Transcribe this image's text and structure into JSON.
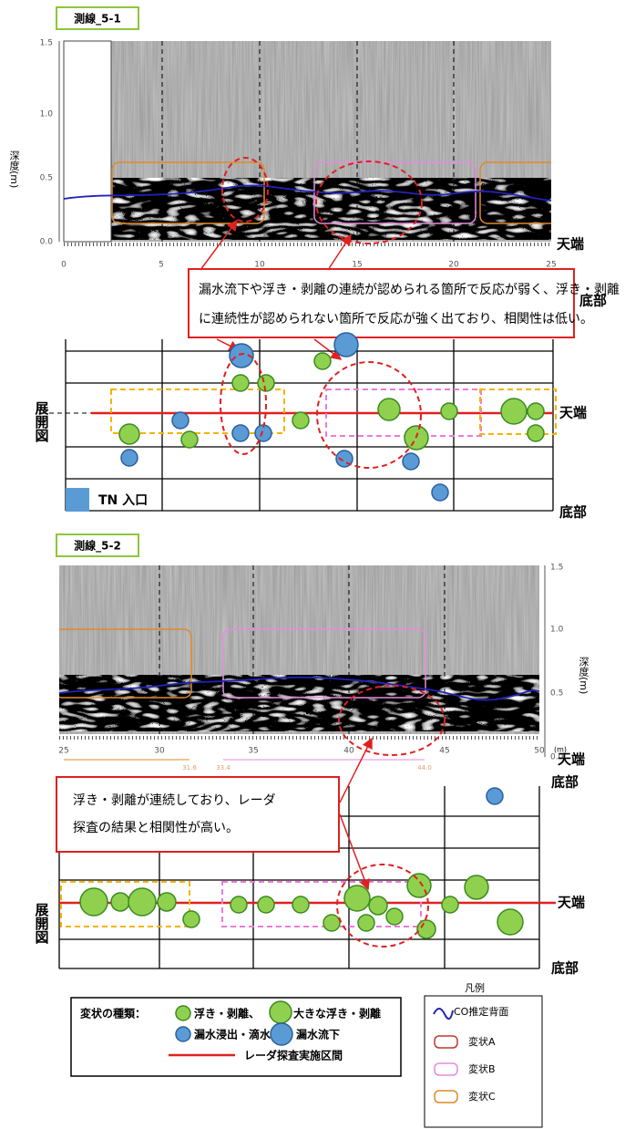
{
  "panel1": {
    "label": "測線_5-1",
    "depth_axis_label": "深度(m)",
    "depth_ticks": [
      "1.5",
      "1.0",
      "0.5",
      "0.0"
    ],
    "distance_ticks": [
      "0",
      "5",
      "10",
      "15",
      "20",
      "25"
    ],
    "top_label": "天端",
    "bottom_label": "底部",
    "callout": [
      "漏水流下や浮き・剥離の連続が認められる箇所で反応が弱く、浮き・剥離",
      "に連続性が認められない箇所で反応が強く出ており、相関性は低い。"
    ],
    "development_label": "展開図",
    "development_top_label": "天端",
    "development_bottom_label": "底部",
    "entrance_label": "TN 入口"
  },
  "panel2": {
    "label": "測線_5-2",
    "depth_axis_label": "深度(m)",
    "depth_ticks": [
      "1.5",
      "1.0",
      "0.5",
      "0.0"
    ],
    "distance_ticks": [
      "25",
      "30",
      "35",
      "40",
      "45",
      "50"
    ],
    "distance_unit": "(m)",
    "section_marks": [
      "31.6",
      "33.4",
      "44.0"
    ],
    "top_label": "天端",
    "bottom_label": "底部",
    "callout": [
      "浮き・剥離が連続しており、レーダ",
      "探査の結果と相関性が高い。"
    ],
    "development_label": "展開図",
    "development_top_label": "天端",
    "development_bottom_label": "底部"
  },
  "legend": {
    "title": "変状の種類：",
    "small_delamination": "浮き・剥離、",
    "large_delamination": "大きな浮き・剥離",
    "seepage": "漏水浸出・滴水、",
    "leak_flow": "漏水流下",
    "radar_section": "レーダ探査実施区間",
    "legend_title": "凡例",
    "co_back": "CO推定背面",
    "type_a": "変状A",
    "type_b": "変状B",
    "type_c": "変状C"
  }
}
